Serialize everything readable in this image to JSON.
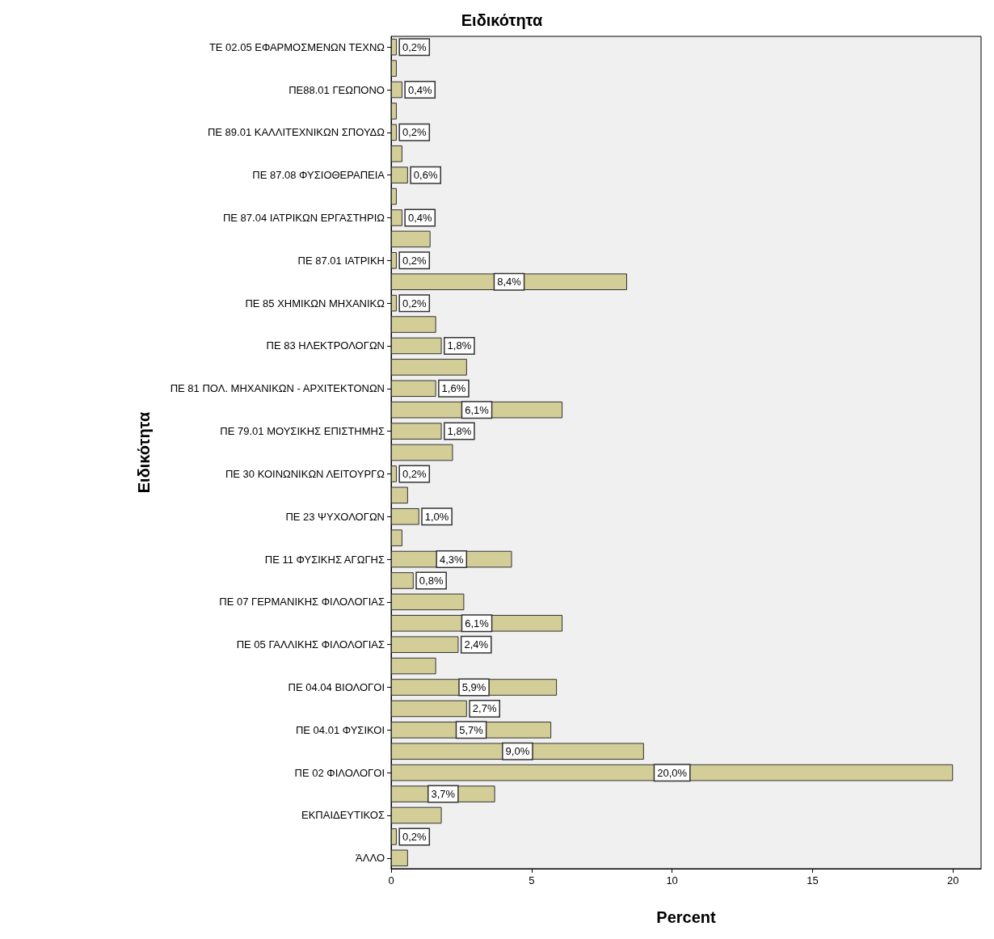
{
  "chart_data": {
    "type": "bar",
    "orientation": "horizontal",
    "title": "Ειδικότητα",
    "xlabel": "Percent",
    "ylabel": "Ειδικότητα",
    "color": "#d3ce97",
    "categories": [
      "ΤΕ 02.05 ΕΦΑΡΜΟΣΜΕΝΩΝ ΤΕΧΝΩ",
      null,
      "ΠΕ88.01 ΓΕΩΠΟΝΟ",
      null,
      "ΠΕ 89.01 ΚΑΛΛΙΤΕΧΝΙΚΩΝ ΣΠΟΥΔΩ",
      null,
      "ΠΕ 87.08 ΦΥΣΙΟΘΕΡΑΠΕΙΑ",
      null,
      "ΠΕ 87.04 ΙΑΤΡΙΚΩΝ ΕΡΓΑΣΤΗΡΙΩ",
      null,
      "ΠΕ 87.01 ΙΑΤΡΙΚΗ",
      null,
      "ΠΕ 85 ΧΗΜΙΚΩΝ ΜΗΧΑΝΙΚΩ",
      null,
      "ΠΕ 83 ΗΛΕΚΤΡΟΛΟΓΩΝ",
      null,
      "ΠΕ 81 ΠΟΛ. ΜΗΧΑΝΙΚΩΝ - ΑΡΧΙΤΕΚΤΟΝΩΝ",
      null,
      "ΠΕ 79.01 ΜΟΥΣΙΚΗΣ ΕΠΙΣΤΗΜΗΣ",
      null,
      "ΠΕ 30 ΚΟΙΝΩΝΙΚΩΝ ΛΕΙΤΟΥΡΓΩ",
      null,
      "ΠΕ 23 ΨΥΧΟΛΟΓΩΝ",
      null,
      "ΠΕ 11 ΦΥΣΙΚΗΣ ΑΓΩΓΗΣ",
      null,
      "ΠΕ 07 ΓΕΡΜΑΝΙΚΗΣ ΦΙΛΟΛΟΓΙΑΣ",
      null,
      "ΠΕ 05 ΓΑΛΛΙΚΗΣ ΦΙΛΟΛΟΓΙΑΣ",
      null,
      "ΠΕ 04.04 ΒΙΟΛΟΓΟΙ",
      null,
      "ΠΕ 04.01 ΦΥΣΙΚΟΙ",
      null,
      "ΠΕ 02 ΦΙΛΟΛΟΓΟΙ",
      null,
      "ΕΚΠΑΙΔΕΥΤΙΚΟΣ",
      null,
      "ΆΛΛΟ"
    ],
    "values": [
      0.2,
      0.2,
      0.4,
      0.2,
      0.2,
      0.4,
      0.6,
      0.2,
      0.4,
      1.4,
      0.2,
      8.4,
      0.2,
      1.6,
      1.8,
      2.7,
      1.6,
      6.1,
      1.8,
      2.2,
      0.2,
      0.6,
      1.0,
      0.4,
      4.3,
      0.8,
      2.6,
      6.1,
      2.4,
      1.6,
      5.9,
      2.7,
      5.7,
      9.0,
      20.0,
      3.7,
      1.8,
      0.2,
      0.6
    ],
    "value_labels": [
      "0,2%",
      null,
      "0,4%",
      null,
      "0,2%",
      null,
      "0,6%",
      null,
      "0,4%",
      null,
      "0,2%",
      "8,4%",
      "0,2%",
      null,
      "1,8%",
      null,
      "1,6%",
      "6,1%",
      "1,8%",
      null,
      "0,2%",
      null,
      "1,0%",
      null,
      "4,3%",
      "0,8%",
      null,
      "6,1%",
      "2,4%",
      null,
      "5,9%",
      "2,7%",
      "5,7%",
      "9,0%",
      "20,0%",
      "3,7%",
      null,
      "0,2%",
      null
    ],
    "xlim": [
      0,
      21
    ],
    "xticks": [
      0,
      5,
      10,
      15,
      20
    ]
  }
}
